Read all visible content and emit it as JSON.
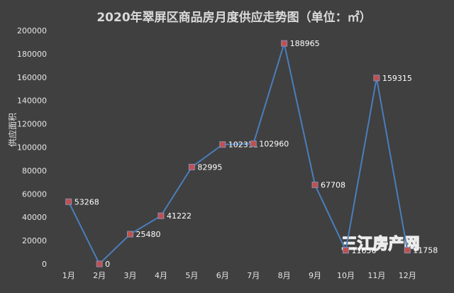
{
  "chart_data": {
    "type": "line",
    "title": "2020年翠屏区商品房月度供应走势图（单位：㎡）",
    "ylabel": "供应面积",
    "xlabel": "",
    "categories": [
      "1月",
      "2月",
      "3月",
      "4月",
      "5月",
      "6月",
      "7月",
      "8月",
      "9月",
      "10月",
      "11月",
      "12月"
    ],
    "series": [
      {
        "values": [
          53268,
          0,
          25480,
          41222,
          82995,
          102311,
          102960,
          188965,
          67708,
          11656,
          159315,
          11758
        ],
        "value_labels": [
          "53268",
          "0",
          "25480",
          "41222",
          "82995",
          "102311",
          "102960",
          "188965",
          "67708",
          "11656",
          "159315",
          "11758"
        ]
      }
    ],
    "ylim": [
      0,
      200000
    ],
    "yticks": [
      0,
      20000,
      40000,
      60000,
      80000,
      100000,
      120000,
      140000,
      160000,
      180000,
      200000
    ],
    "ytick_labels": [
      "0",
      "20000",
      "40000",
      "60000",
      "80000",
      "100000",
      "120000",
      "140000",
      "160000",
      "180000",
      "200000"
    ],
    "grid": false,
    "legend": "none",
    "colors": {
      "line": "#4a7ebb",
      "marker_fill": "#c0504d",
      "marker_stroke": "#8c8cb4",
      "background": "#404040"
    }
  },
  "watermark": {
    "text": "三江房产网"
  }
}
